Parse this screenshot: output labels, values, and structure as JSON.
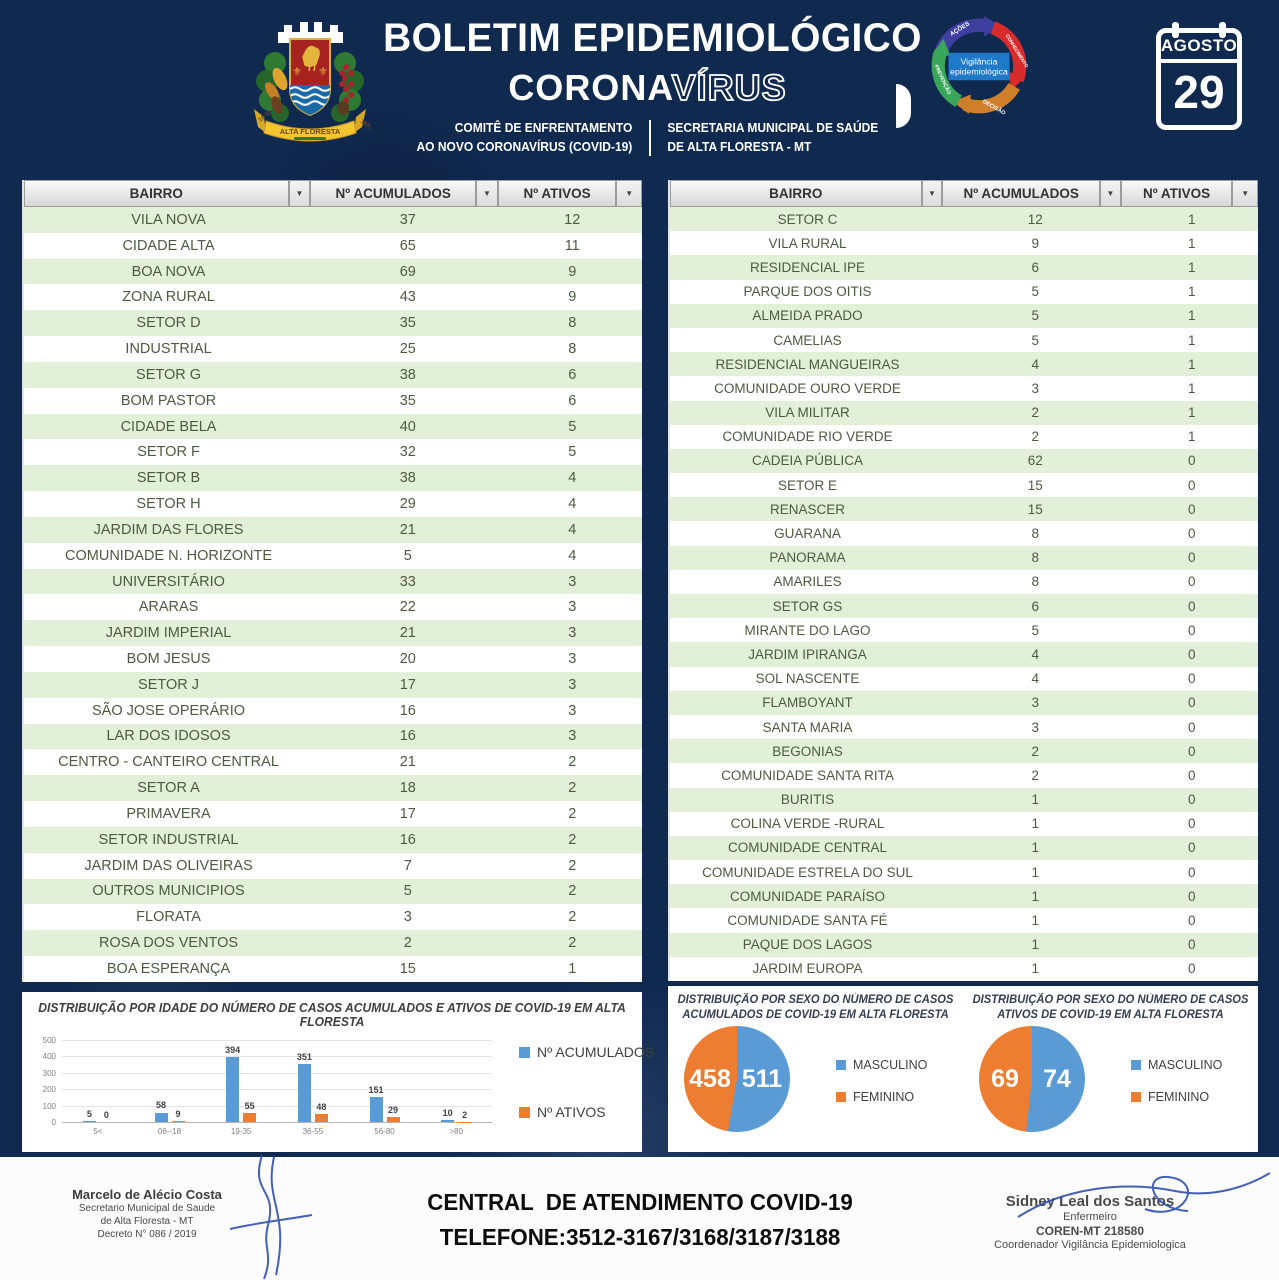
{
  "header": {
    "title": "BOLETIM EPIDEMIOLÓGICO",
    "corona_solid": "CORONA",
    "corona_outline": "VÍRUS",
    "committee_line1": "COMITÊ DE ENFRENTAMENTO",
    "committee_line2": "AO NOVO CORONAVÍRUS (COVID-19)",
    "secretary_line1": "SECRETARIA MUNICIPAL DE SAÚDE",
    "secretary_line2": "DE ALTA FLORESTA - MT",
    "crest_banner": "ALTA FLORESTA",
    "crest_year_left": "18-12",
    "crest_year_right": "1979",
    "cycle_center_line1": "Vigilância",
    "cycle_center_line2": "epidemiológica",
    "cycle_segments": [
      "AÇÕES",
      "CONHECIMENTO",
      "DECISÃO",
      "PREVENÇÃO"
    ],
    "calendar_month": "AGOSTO",
    "calendar_day": "29"
  },
  "table_headers": {
    "bairro": "BAIRRO",
    "acumulados": "Nº ACUMULADOS",
    "ativos": "Nº ATIVOS"
  },
  "left_table_rows": [
    [
      "VILA NOVA",
      37,
      12
    ],
    [
      "CIDADE ALTA",
      65,
      11
    ],
    [
      "BOA NOVA",
      69,
      9
    ],
    [
      "ZONA RURAL",
      43,
      9
    ],
    [
      "SETOR D",
      35,
      8
    ],
    [
      "INDUSTRIAL",
      25,
      8
    ],
    [
      "SETOR G",
      38,
      6
    ],
    [
      "BOM PASTOR",
      35,
      6
    ],
    [
      "CIDADE BELA",
      40,
      5
    ],
    [
      "SETOR F",
      32,
      5
    ],
    [
      "SETOR B",
      38,
      4
    ],
    [
      "SETOR H",
      29,
      4
    ],
    [
      "JARDIM DAS FLORES",
      21,
      4
    ],
    [
      "COMUNIDADE N. HORIZONTE",
      5,
      4
    ],
    [
      "UNIVERSITÁRIO",
      33,
      3
    ],
    [
      "ARARAS",
      22,
      3
    ],
    [
      "JARDIM IMPERIAL",
      21,
      3
    ],
    [
      "BOM JESUS",
      20,
      3
    ],
    [
      "SETOR J",
      17,
      3
    ],
    [
      "SÃO JOSE OPERÁRIO",
      16,
      3
    ],
    [
      "LAR DOS IDOSOS",
      16,
      3
    ],
    [
      "CENTRO - CANTEIRO CENTRAL",
      21,
      2
    ],
    [
      "SETOR A",
      18,
      2
    ],
    [
      "PRIMAVERA",
      17,
      2
    ],
    [
      "SETOR INDUSTRIAL",
      16,
      2
    ],
    [
      "JARDIM DAS OLIVEIRAS",
      7,
      2
    ],
    [
      "OUTROS MUNICIPIOS",
      5,
      2
    ],
    [
      "FLORATA",
      3,
      2
    ],
    [
      "ROSA DOS VENTOS",
      2,
      2
    ],
    [
      "BOA ESPERANÇA",
      15,
      1
    ]
  ],
  "right_table_rows": [
    [
      "SETOR C",
      12,
      1
    ],
    [
      "VILA RURAL",
      9,
      1
    ],
    [
      "RESIDENCIAL IPE",
      6,
      1
    ],
    [
      "PARQUE DOS OITIS",
      5,
      1
    ],
    [
      "ALMEIDA PRADO",
      5,
      1
    ],
    [
      "CAMELIAS",
      5,
      1
    ],
    [
      "RESIDENCIAL MANGUEIRAS",
      4,
      1
    ],
    [
      "COMUNIDADE OURO VERDE",
      3,
      1
    ],
    [
      "VILA MILITAR",
      2,
      1
    ],
    [
      "COMUNIDADE RIO VERDE",
      2,
      1
    ],
    [
      "CADEIA PÚBLICA",
      62,
      0
    ],
    [
      "SETOR E",
      15,
      0
    ],
    [
      "RENASCER",
      15,
      0
    ],
    [
      "GUARANA",
      8,
      0
    ],
    [
      "PANORAMA",
      8,
      0
    ],
    [
      "AMARILES",
      8,
      0
    ],
    [
      "SETOR GS",
      6,
      0
    ],
    [
      "MIRANTE DO LAGO",
      5,
      0
    ],
    [
      "JARDIM IPIRANGA",
      4,
      0
    ],
    [
      "SOL NASCENTE",
      4,
      0
    ],
    [
      "FLAMBOYANT",
      3,
      0
    ],
    [
      "SANTA MARIA",
      3,
      0
    ],
    [
      "BEGONIAS",
      2,
      0
    ],
    [
      "COMUNIDADE SANTA RITA",
      2,
      0
    ],
    [
      "BURITIS",
      1,
      0
    ],
    [
      "COLINA VERDE -RURAL",
      1,
      0
    ],
    [
      "COMUNIDADE CENTRAL",
      1,
      0
    ],
    [
      "COMUNIDADE ESTRELA DO SUL",
      1,
      0
    ],
    [
      "COMUNIDADE PARAÍSO",
      1,
      0
    ],
    [
      "COMUNIDADE SANTA FÉ",
      1,
      0
    ],
    [
      "PAQUE DOS LAGOS",
      1,
      0
    ],
    [
      "JARDIM EUROPA",
      1,
      0
    ]
  ],
  "chart_data": [
    {
      "type": "bar",
      "title": "DISTRIBUIÇÃO POR IDADE DO NÚMERO DE CASOS ACUMULADOS E ATIVOS DE COVID-19 EM ALTA FLORESTA",
      "categories": [
        "5<",
        "06--18",
        "19-35",
        "36-55",
        "56-80",
        ">80"
      ],
      "series": [
        {
          "name": "Nº ACUMULADOS",
          "color": "#5b9bd5",
          "values": [
            5,
            58,
            394,
            351,
            151,
            10
          ]
        },
        {
          "name": "Nº ATIVOS",
          "color": "#ed7d31",
          "values": [
            0,
            9,
            55,
            48,
            29,
            2
          ]
        }
      ],
      "ylim": [
        0,
        500
      ],
      "yticks": [
        0,
        100,
        200,
        300,
        400,
        500
      ],
      "grid": true,
      "legend_position": "right"
    },
    {
      "type": "pie",
      "title_line1": "DISTRIBUIÇÃO POR SEXO DO NÚMERO DE CASOS",
      "title_line2": "ACUMULADOS DE COVID-19 EM ALTA FLORESTA",
      "labels": [
        "MASCULINO",
        "FEMININO"
      ],
      "values": [
        511,
        458
      ],
      "colors": [
        "#5b9bd5",
        "#ed7d31"
      ]
    },
    {
      "type": "pie",
      "title_line1": "DISTRIBUIÇÃO POR SEXO DO NÚMERO DE CASOS",
      "title_line2": "ATIVOS DE COVID-19 EM ALTA FLORESTA",
      "labels": [
        "MASCULINO",
        "FEMININO"
      ],
      "values": [
        74,
        69
      ],
      "colors": [
        "#5b9bd5",
        "#ed7d31"
      ]
    }
  ],
  "footer": {
    "hotline_line1": "CENTRAL  DE ATENDIMENTO COVID-19",
    "hotline_line2": "TELEFONE:3512-3167/3168/3187/3188",
    "sig_left_name": "Marcelo de Alécio Costa",
    "sig_left_line2": "Secretario Municipal de Saude",
    "sig_left_line3": "de Alta Floresta - MT",
    "sig_left_line4": "Decreto N° 086 / 2019",
    "sig_right_name": "Sidney Leal dos Santos",
    "sig_right_line2": "Enfermeiro",
    "sig_right_line3": "COREN-MT 218580",
    "sig_right_line4": "Coordenador Vigilância Epidemiologica"
  },
  "colors": {
    "navy": "#10294f",
    "accent_blue": "#5b9bd5",
    "accent_orange": "#ed7d31",
    "row_green": "#e2efd9"
  }
}
